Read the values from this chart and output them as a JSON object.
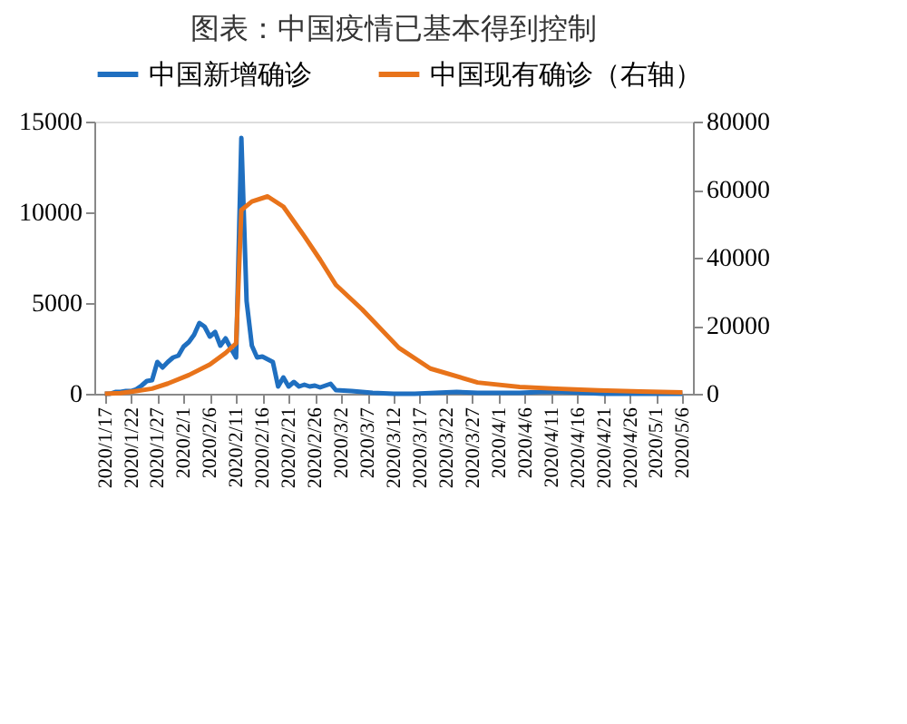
{
  "chart_data": {
    "type": "line",
    "title": "图表：中国疫情已基本得到控制",
    "series": [
      {
        "name": "中国新增确诊",
        "color": "#1f6fc0",
        "axis": "y",
        "x": [
          "2020-01-17",
          "2020-01-18",
          "2020-01-19",
          "2020-01-20",
          "2020-01-21",
          "2020-01-22",
          "2020-01-23",
          "2020-01-24",
          "2020-01-25",
          "2020-01-26",
          "2020-01-27",
          "2020-01-28",
          "2020-01-29",
          "2020-01-30",
          "2020-01-31",
          "2020-02-01",
          "2020-02-02",
          "2020-02-03",
          "2020-02-04",
          "2020-02-05",
          "2020-02-06",
          "2020-02-07",
          "2020-02-08",
          "2020-02-09",
          "2020-02-10",
          "2020-02-11",
          "2020-02-12",
          "2020-02-13",
          "2020-02-14",
          "2020-02-15",
          "2020-02-16",
          "2020-02-17",
          "2020-02-18",
          "2020-02-19",
          "2020-02-20",
          "2020-02-21",
          "2020-02-22",
          "2020-02-23",
          "2020-02-24",
          "2020-02-25",
          "2020-02-26",
          "2020-02-27",
          "2020-02-28",
          "2020-02-29",
          "2020-03-01",
          "2020-03-04",
          "2020-03-08",
          "2020-03-12",
          "2020-03-16",
          "2020-03-20",
          "2020-03-24",
          "2020-03-28",
          "2020-04-01",
          "2020-04-05",
          "2020-04-09",
          "2020-04-13",
          "2020-04-17",
          "2020-04-21",
          "2020-04-25",
          "2020-04-29",
          "2020-05-03",
          "2020-05-06"
        ],
        "values": [
          0,
          0,
          100,
          100,
          150,
          150,
          250,
          450,
          700,
          750,
          1750,
          1450,
          1750,
          2000,
          2100,
          2600,
          2850,
          3250,
          3900,
          3700,
          3150,
          3400,
          2650,
          3050,
          2500,
          2000,
          14100,
          5100,
          2650,
          2000,
          2050,
          1900,
          1750,
          400,
          900,
          400,
          650,
          400,
          500,
          400,
          450,
          350,
          450,
          550,
          200,
          150,
          50,
          0,
          0,
          50,
          100,
          50,
          50,
          50,
          100,
          100,
          50,
          0,
          0,
          0,
          0,
          0
        ]
      },
      {
        "name": "中国现有确诊（右轴）",
        "color": "#e8731a",
        "axis": "y2",
        "x": [
          "2020-01-17",
          "2020-01-20",
          "2020-01-23",
          "2020-01-26",
          "2020-01-29",
          "2020-02-02",
          "2020-02-06",
          "2020-02-09",
          "2020-02-11",
          "2020-02-12",
          "2020-02-14",
          "2020-02-17",
          "2020-02-20",
          "2020-02-24",
          "2020-02-27",
          "2020-03-01",
          "2020-03-06",
          "2020-03-13",
          "2020-03-19",
          "2020-03-28",
          "2020-04-05",
          "2020-04-12",
          "2020-04-20",
          "2020-04-28",
          "2020-05-06"
        ],
        "values": [
          0,
          200,
          800,
          1500,
          3000,
          5500,
          8600,
          12000,
          14800,
          54000,
          56500,
          58000,
          55000,
          46300,
          39400,
          32000,
          24800,
          13500,
          7400,
          3300,
          2000,
          1500,
          1000,
          700,
          400
        ]
      }
    ],
    "xlim": [
      "2020-01-15",
      "2020-05-08"
    ],
    "xticks": [
      {
        "value": "2020-01-17",
        "label": "2020/1/17"
      },
      {
        "value": "2020-01-22",
        "label": "2020/1/22"
      },
      {
        "value": "2020-01-27",
        "label": "2020/1/27"
      },
      {
        "value": "2020-02-01",
        "label": "2020/2/1"
      },
      {
        "value": "2020-02-06",
        "label": "2020/2/6"
      },
      {
        "value": "2020-02-11",
        "label": "2020/2/11"
      },
      {
        "value": "2020-02-16",
        "label": "2020/2/16"
      },
      {
        "value": "2020-02-21",
        "label": "2020/2/21"
      },
      {
        "value": "2020-02-26",
        "label": "2020/2/26"
      },
      {
        "value": "2020-03-02",
        "label": "2020/3/2"
      },
      {
        "value": "2020-03-07",
        "label": "2020/3/7"
      },
      {
        "value": "2020-03-12",
        "label": "2020/3/12"
      },
      {
        "value": "2020-03-17",
        "label": "2020/3/17"
      },
      {
        "value": "2020-03-22",
        "label": "2020/3/22"
      },
      {
        "value": "2020-03-27",
        "label": "2020/3/27"
      },
      {
        "value": "2020-04-01",
        "label": "2020/4/1"
      },
      {
        "value": "2020-04-06",
        "label": "2020/4/6"
      },
      {
        "value": "2020-04-11",
        "label": "2020/4/11"
      },
      {
        "value": "2020-04-16",
        "label": "2020/4/16"
      },
      {
        "value": "2020-04-21",
        "label": "2020/4/21"
      },
      {
        "value": "2020-04-26",
        "label": "2020/4/26"
      },
      {
        "value": "2020-05-01",
        "label": "2020/5/1"
      },
      {
        "value": "2020-05-06",
        "label": "2020/5/6"
      }
    ],
    "ylim": [
      0,
      15000
    ],
    "yticks": [
      0,
      5000,
      10000,
      15000
    ],
    "y2lim": [
      0,
      80000
    ],
    "y2ticks": [
      0,
      20000,
      40000,
      60000,
      80000
    ],
    "grid": false,
    "legend": "top",
    "marker": "none",
    "line_style": "solid"
  }
}
